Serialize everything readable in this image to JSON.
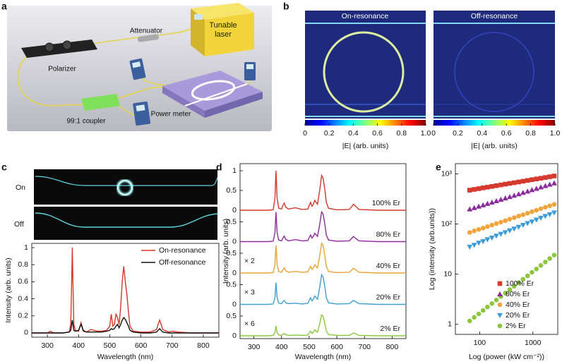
{
  "panel_labels": [
    "a",
    "b",
    "c",
    "d",
    "e"
  ],
  "setup": {
    "attenuator": "Attenuator",
    "laser": "Tunable laser",
    "polarizer": "Polarizer",
    "coupler": "99:1 coupler",
    "meter": "Power meter"
  },
  "field_maps": {
    "maps": [
      {
        "title": "On-resonance"
      },
      {
        "title": "Off-resonance"
      }
    ],
    "colorbar": {
      "ticks": [
        0,
        0.2,
        0.4,
        0.6,
        0.8,
        {
          "value": 1,
          "label": "1.0"
        }
      ],
      "clim": [
        0,
        1
      ],
      "label": "|E| (arb. units)"
    }
  },
  "chart_data": [
    {
      "type": "line",
      "xlabel": "Wavelength (nm)",
      "ylabel": "Intensity (arb. units)",
      "insets": [
        "On",
        "Off"
      ],
      "xlim": [
        250,
        850
      ],
      "xticks": [
        300,
        400,
        500,
        600,
        700,
        800
      ],
      "ylim": [
        -0.05,
        1.05
      ],
      "yticks": [
        0,
        0.2,
        0.4,
        0.6,
        0.8,
        1
      ],
      "legend": "upper right",
      "x": [
        250,
        300,
        310,
        315,
        320,
        350,
        370,
        375,
        378,
        380,
        382,
        385,
        390,
        400,
        405,
        408,
        411,
        415,
        425,
        440,
        450,
        460,
        475,
        490,
        500,
        505,
        510,
        515,
        520,
        525,
        530,
        535,
        540,
        545,
        550,
        555,
        560,
        565,
        575,
        600,
        630,
        650,
        655,
        660,
        665,
        670,
        690,
        700,
        720,
        760,
        800,
        850
      ],
      "series": [
        {
          "name": "On-resonance",
          "color": "#d9352a",
          "values": [
            0,
            0,
            0.02,
            0.01,
            0,
            0,
            0.01,
            0.1,
            0.6,
            1.0,
            0.6,
            0.1,
            0.03,
            0.02,
            0.08,
            0.12,
            0.08,
            0.02,
            0.01,
            0.04,
            0.03,
            0.02,
            0.02,
            0.03,
            0.08,
            0.22,
            0.08,
            0.1,
            0.22,
            0.18,
            0.1,
            0.3,
            0.6,
            0.78,
            0.6,
            0.45,
            0.25,
            0.08,
            0.02,
            0.01,
            0.01,
            0.04,
            0.1,
            0.15,
            0.1,
            0.04,
            0.01,
            0.02,
            0.01,
            0,
            0,
            0
          ]
        },
        {
          "name": "Off-resonance",
          "color": "#111111",
          "values": [
            0,
            0,
            0,
            0,
            0,
            0,
            0.01,
            0.03,
            0.1,
            0.15,
            0.1,
            0.03,
            0.02,
            0.03,
            0.08,
            0.1,
            0.07,
            0.03,
            0.01,
            0.01,
            0.01,
            0.01,
            0.01,
            0.02,
            0.03,
            0.05,
            0.04,
            0.05,
            0.08,
            0.1,
            0.06,
            0.1,
            0.15,
            0.18,
            0.16,
            0.12,
            0.08,
            0.03,
            0.01,
            0,
            0,
            0.01,
            0.03,
            0.05,
            0.03,
            0.01,
            0,
            0,
            0,
            0,
            0,
            0
          ]
        }
      ]
    },
    {
      "type": "offset-line",
      "xlabel": "Wavelength (nm)",
      "ylabel": "Intensity (arb. units)",
      "xlim": [
        250,
        850
      ],
      "xticks": [
        300,
        400,
        500,
        600,
        700,
        800
      ],
      "x": [
        250,
        300,
        350,
        370,
        376,
        380,
        384,
        390,
        400,
        405,
        410,
        415,
        425,
        450,
        475,
        495,
        500,
        505,
        510,
        515,
        520,
        530,
        538,
        545,
        550,
        556,
        562,
        570,
        600,
        645,
        655,
        660,
        665,
        680,
        750,
        850
      ],
      "series": [
        {
          "name": "100% Er",
          "color": "#d0392a",
          "ylim": [
            0,
            1
          ],
          "yticks": [
            0,
            0.5,
            1
          ],
          "values": [
            0,
            0,
            0,
            0.01,
            0.3,
            1.0,
            0.3,
            0.05,
            0.03,
            0.12,
            0.18,
            0.08,
            0.03,
            0.06,
            0.02,
            0.03,
            0.12,
            0.2,
            0.1,
            0.15,
            0.25,
            0.15,
            0.5,
            0.88,
            0.82,
            0.55,
            0.2,
            0.05,
            0.01,
            0.02,
            0.1,
            0.15,
            0.12,
            0.02,
            0,
            0
          ]
        },
        {
          "name": "80% Er",
          "color": "#8e2c9a",
          "ylim": [
            0,
            1
          ],
          "yticks": [
            0,
            0.5
          ],
          "values": [
            0,
            0,
            0,
            0.01,
            0.22,
            0.75,
            0.22,
            0.04,
            0.02,
            0.09,
            0.14,
            0.06,
            0.02,
            0.05,
            0.02,
            0.03,
            0.1,
            0.17,
            0.09,
            0.13,
            0.21,
            0.13,
            0.43,
            0.75,
            0.7,
            0.47,
            0.17,
            0.04,
            0.01,
            0.02,
            0.09,
            0.13,
            0.1,
            0.02,
            0,
            0
          ]
        },
        {
          "name": "40% Er",
          "color": "#e8a33a",
          "scale_label": "× 2",
          "ylim": [
            0,
            1
          ],
          "yticks": [
            0,
            0.5
          ],
          "values": [
            0,
            0,
            0,
            0.01,
            0.21,
            0.7,
            0.21,
            0.04,
            0.02,
            0.08,
            0.13,
            0.06,
            0.02,
            0.04,
            0.02,
            0.03,
            0.1,
            0.17,
            0.09,
            0.13,
            0.21,
            0.13,
            0.43,
            0.75,
            0.7,
            0.47,
            0.17,
            0.04,
            0.01,
            0.02,
            0.08,
            0.12,
            0.1,
            0.02,
            0,
            0
          ]
        },
        {
          "name": "20% Er",
          "color": "#3f9fd0",
          "scale_label": "× 3",
          "ylim": [
            0,
            1
          ],
          "yticks": [
            0,
            0.5
          ],
          "values": [
            0,
            0,
            0,
            0.01,
            0.17,
            0.55,
            0.17,
            0.03,
            0.02,
            0.07,
            0.1,
            0.04,
            0.02,
            0.03,
            0.01,
            0.03,
            0.1,
            0.17,
            0.09,
            0.13,
            0.21,
            0.13,
            0.43,
            0.75,
            0.7,
            0.47,
            0.17,
            0.04,
            0.01,
            0.02,
            0.07,
            0.1,
            0.08,
            0.02,
            0,
            0
          ]
        },
        {
          "name": "2% Er",
          "color": "#8cc63f",
          "scale_label": "× 6",
          "ylim": [
            0,
            1
          ],
          "yticks": [
            0,
            0.5
          ],
          "values": [
            0,
            0,
            0,
            0.01,
            0.08,
            0.25,
            0.08,
            0.02,
            0.01,
            0.04,
            0.06,
            0.03,
            0.01,
            0.02,
            0.01,
            0.02,
            0.07,
            0.12,
            0.06,
            0.09,
            0.15,
            0.09,
            0.3,
            0.53,
            0.5,
            0.33,
            0.12,
            0.03,
            0.01,
            0.01,
            0.05,
            0.07,
            0.06,
            0.01,
            0,
            0
          ]
        }
      ]
    },
    {
      "type": "scatter",
      "xlabel": "Log (power (kW cm⁻²))",
      "ylabel": "Log (intensity (arb.units))",
      "xlog": true,
      "ylog": true,
      "xlim": [
        35,
        2930
      ],
      "xticks": [
        100,
        1000
      ],
      "ylim": [
        0.63,
        1600
      ],
      "yticks": [
        1,
        10,
        {
          "value": 100,
          "label": "10²"
        },
        {
          "value": 1000,
          "label": "10³"
        }
      ],
      "legend": "lower right",
      "x": [
        65,
        79,
        96,
        116,
        140,
        170,
        206,
        250,
        303,
        367,
        445,
        540,
        653,
        793,
        959,
        1164,
        1409,
        1710,
        2070,
        2512
      ],
      "series": [
        {
          "name": "100% Er",
          "color": "#d63a2f",
          "marker": "square",
          "values": [
            474,
            491,
            508,
            526,
            543,
            562,
            582,
            603,
            624,
            646,
            667,
            690,
            714,
            740,
            766,
            793,
            818,
            847,
            877,
            908
          ]
        },
        {
          "name": "80% Er",
          "color": "#8a2c9c",
          "marker": "triangle-up",
          "values": [
            198,
            211,
            225,
            239,
            255,
            271,
            289,
            308,
            327,
            349,
            372,
            396,
            422,
            449,
            479,
            509,
            543,
            578,
            615,
            656
          ]
        },
        {
          "name": "40% Er",
          "color": "#f0a53c",
          "marker": "circle",
          "values": [
            68,
            73,
            78,
            83,
            89,
            95,
            102,
            109,
            117,
            125,
            134,
            144,
            153,
            164,
            176,
            188,
            202,
            216,
            231,
            247
          ]
        },
        {
          "name": "20% Er",
          "color": "#3d9bd6",
          "marker": "triangle-down",
          "values": [
            35,
            38,
            42,
            45,
            49,
            53,
            58,
            63,
            68,
            74,
            80,
            87,
            95,
            103,
            111,
            121,
            132,
            143,
            155,
            168
          ]
        },
        {
          "name": "2% Er",
          "color": "#8cc63f",
          "marker": "circle",
          "values": [
            1.17,
            1.38,
            1.61,
            1.89,
            2.22,
            2.6,
            3.05,
            3.57,
            4.19,
            4.91,
            5.75,
            6.75,
            7.91,
            9.27,
            10.9,
            12.7,
            14.9,
            17.5,
            20.5,
            24.0
          ]
        }
      ]
    }
  ]
}
